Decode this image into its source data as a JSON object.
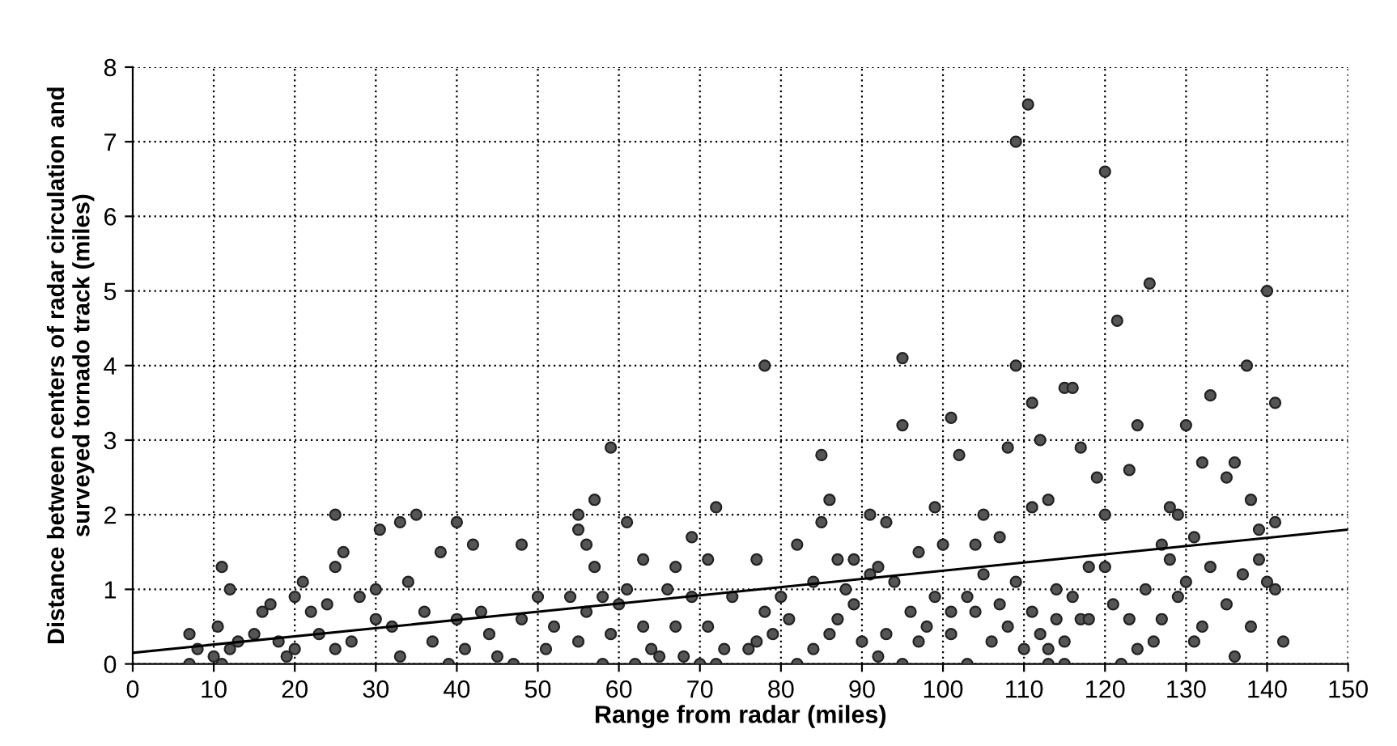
{
  "chart_data": {
    "type": "scatter",
    "xlabel": "Range from radar (miles)",
    "ylabel": "Distance between centers of radar circulation and\nsurveyed tornado track (miles)",
    "xlim": [
      0,
      150
    ],
    "xticks": [
      0,
      10,
      20,
      30,
      40,
      50,
      60,
      70,
      80,
      90,
      100,
      110,
      120,
      130,
      140,
      150
    ],
    "ylim": [
      0,
      8
    ],
    "yticks": [
      0,
      1,
      2,
      3,
      4,
      5,
      6,
      7,
      8
    ],
    "grid": true,
    "series": [
      {
        "marker": "circle",
        "color": "#555555",
        "x": [
          109,
          110.5,
          120,
          125.5,
          140,
          121.5,
          78,
          95,
          109,
          137.5,
          95,
          101,
          111,
          115,
          116,
          133,
          141,
          124,
          130,
          59,
          102,
          85,
          108,
          117,
          112,
          72,
          57,
          35,
          25,
          55,
          40,
          33,
          30.5,
          99,
          105,
          120,
          136,
          132,
          135,
          123,
          128,
          129,
          111,
          113,
          119,
          61,
          69,
          85,
          86,
          91,
          93,
          11,
          12,
          25,
          26,
          38,
          42,
          48,
          55,
          56,
          57,
          63,
          67,
          71,
          77,
          82,
          87,
          89,
          92,
          97,
          100,
          104,
          107,
          114,
          118,
          127,
          139,
          141,
          131,
          138,
          7,
          7,
          8,
          10,
          10.5,
          11,
          12,
          13,
          15,
          16,
          17,
          18,
          19,
          20,
          20,
          21,
          22,
          23,
          24,
          25,
          27,
          28,
          30,
          30,
          32,
          33,
          34,
          36,
          37,
          39,
          40,
          41,
          43,
          44,
          45,
          47,
          48,
          50,
          51,
          52,
          54,
          55,
          56,
          58,
          58,
          59,
          60,
          61,
          62,
          63,
          64,
          65,
          66,
          67,
          68,
          69,
          70,
          71,
          72,
          73,
          74,
          76,
          77,
          78,
          79,
          80,
          81,
          82,
          84,
          84,
          86,
          87,
          88,
          89,
          90,
          91,
          92,
          93,
          94,
          95,
          96,
          97,
          98,
          99,
          101,
          101,
          103,
          103,
          104,
          105,
          106,
          107,
          108,
          109,
          110,
          111,
          112,
          113,
          114,
          115,
          116,
          117,
          118,
          120,
          121,
          122,
          123,
          124,
          125,
          126,
          127,
          128,
          129,
          130,
          131,
          132,
          133,
          135,
          136,
          137,
          138,
          139,
          140,
          141,
          142,
          113,
          115
        ],
        "values": [
          7.0,
          7.5,
          6.6,
          5.1,
          5.0,
          4.6,
          4.0,
          4.1,
          4.0,
          4.0,
          3.2,
          3.3,
          3.5,
          3.7,
          3.7,
          3.6,
          3.5,
          3.2,
          3.2,
          2.9,
          2.8,
          2.8,
          2.9,
          2.9,
          3.0,
          2.1,
          2.2,
          2.0,
          2.0,
          2.0,
          1.9,
          1.9,
          1.8,
          2.1,
          2.0,
          2.0,
          2.7,
          2.7,
          2.5,
          2.6,
          2.1,
          2.0,
          2.1,
          2.2,
          2.5,
          1.9,
          1.7,
          1.9,
          2.2,
          2.0,
          1.9,
          1.3,
          1.0,
          1.3,
          1.5,
          1.5,
          1.6,
          1.6,
          1.8,
          1.6,
          1.3,
          1.4,
          1.3,
          1.4,
          1.4,
          1.6,
          1.4,
          1.4,
          1.3,
          1.5,
          1.6,
          1.6,
          1.7,
          1.0,
          1.3,
          1.6,
          1.8,
          1.9,
          1.7,
          2.2,
          0.4,
          0.0,
          0.2,
          0.1,
          0.5,
          0.0,
          0.2,
          0.3,
          0.4,
          0.7,
          0.8,
          0.3,
          0.1,
          0.2,
          0.9,
          1.1,
          0.7,
          0.4,
          0.8,
          0.2,
          0.3,
          0.9,
          0.6,
          1.0,
          0.5,
          0.1,
          1.1,
          0.7,
          0.3,
          0.0,
          0.6,
          0.2,
          0.7,
          0.4,
          0.1,
          0.0,
          0.6,
          0.9,
          0.2,
          0.5,
          0.9,
          0.3,
          0.7,
          0.0,
          0.9,
          0.4,
          0.8,
          1.0,
          0.0,
          0.5,
          0.2,
          0.1,
          1.0,
          0.5,
          0.1,
          0.9,
          0.0,
          0.5,
          0.0,
          0.2,
          0.9,
          0.2,
          0.3,
          0.7,
          0.4,
          0.9,
          0.6,
          0.0,
          0.2,
          1.1,
          0.4,
          0.6,
          1.0,
          0.8,
          0.3,
          1.2,
          0.1,
          0.4,
          1.1,
          0.0,
          0.7,
          0.3,
          0.5,
          0.9,
          0.7,
          0.4,
          0.0,
          0.9,
          0.7,
          1.2,
          0.3,
          0.8,
          0.5,
          1.1,
          0.2,
          0.7,
          0.4,
          0.2,
          0.6,
          0.3,
          0.9,
          0.6,
          0.6,
          1.3,
          0.8,
          0.0,
          0.6,
          0.2,
          1.0,
          0.3,
          0.6,
          1.4,
          0.9,
          1.1,
          0.3,
          0.5,
          1.3,
          0.8,
          0.1,
          1.2,
          0.5,
          1.4,
          1.1,
          1.0,
          0.3,
          0.0,
          0.0
        ]
      },
      {
        "type": "line",
        "marker": "none",
        "color": "#000000",
        "x": [
          0,
          150
        ],
        "values": [
          0.15,
          1.8
        ]
      }
    ]
  }
}
